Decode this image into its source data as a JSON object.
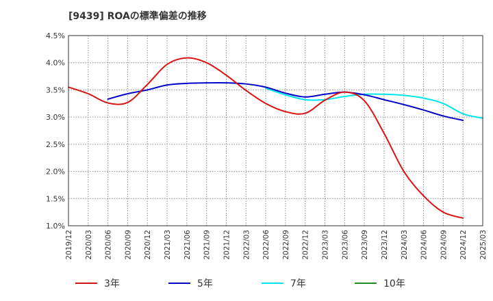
{
  "chart_data": {
    "type": "line",
    "title": "[9439]  ROAの標準偏差の推移",
    "xlabel": "",
    "ylabel": "",
    "ylim": [
      1.0,
      4.5
    ],
    "y_ticks": [
      "1.0%",
      "1.5%",
      "2.0%",
      "2.5%",
      "3.0%",
      "3.5%",
      "4.0%",
      "4.5%"
    ],
    "x_ticks": [
      "2019/12",
      "2020/03",
      "2020/06",
      "2020/09",
      "2020/12",
      "2021/03",
      "2021/06",
      "2021/09",
      "2021/12",
      "2022/03",
      "2022/06",
      "2022/09",
      "2022/12",
      "2023/03",
      "2023/06",
      "2023/09",
      "2023/12",
      "2024/03",
      "2024/06",
      "2024/09",
      "2024/12",
      "2025/03"
    ],
    "grid": true,
    "legend_position": "bottom",
    "series": [
      {
        "name": "3年",
        "color": "#dd1111",
        "start_index": 0,
        "values": [
          3.55,
          3.43,
          3.26,
          3.27,
          3.6,
          3.97,
          4.09,
          4.0,
          3.77,
          3.49,
          3.25,
          3.1,
          3.07,
          3.31,
          3.46,
          3.3,
          2.7,
          2.0,
          1.55,
          1.25,
          1.14
        ]
      },
      {
        "name": "5年",
        "color": "#0000cc",
        "start_index": 2,
        "values": [
          3.33,
          3.43,
          3.5,
          3.59,
          3.62,
          3.63,
          3.63,
          3.61,
          3.55,
          3.44,
          3.37,
          3.42,
          3.46,
          3.41,
          3.32,
          3.23,
          3.13,
          3.02,
          2.94
        ]
      },
      {
        "name": "7年",
        "color": "#00e5ee",
        "start_index": 10,
        "values": [
          3.53,
          3.41,
          3.32,
          3.32,
          3.38,
          3.42,
          3.42,
          3.4,
          3.35,
          3.25,
          3.06,
          2.98
        ]
      },
      {
        "name": "10年",
        "color": "#228B22",
        "start_index": 0,
        "values": []
      }
    ]
  }
}
